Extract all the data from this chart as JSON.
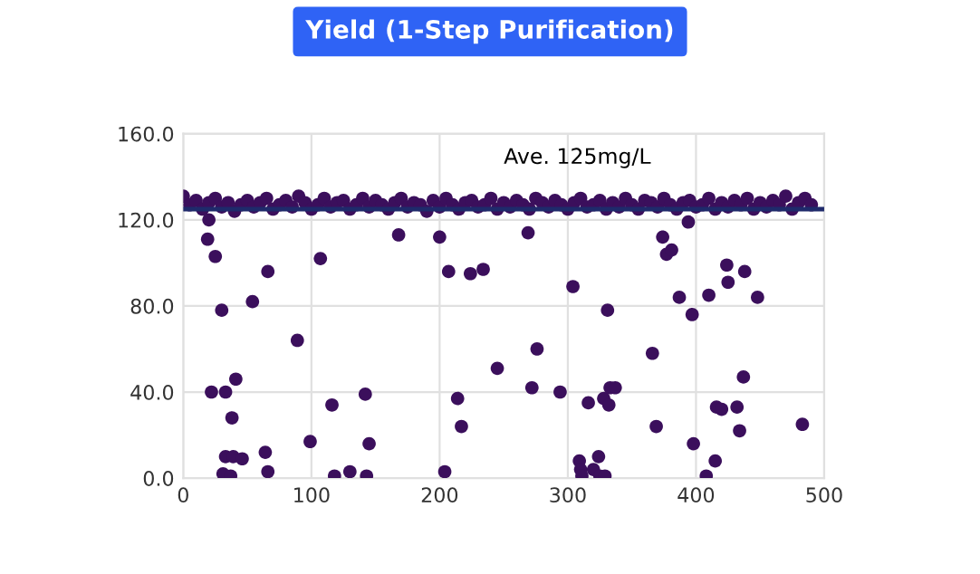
{
  "chart_data": {
    "type": "scatter",
    "title": "Yield (1-Step Purification)",
    "series": [
      {
        "color": "#3b0f5c",
        "x": [
          0,
          5,
          10,
          15,
          20,
          25,
          30,
          35,
          40,
          45,
          50,
          55,
          60,
          65,
          70,
          75,
          80,
          85,
          90,
          95,
          100,
          105,
          110,
          115,
          120,
          125,
          130,
          135,
          140,
          145,
          150,
          155,
          160,
          165,
          170,
          175,
          180,
          185,
          190,
          195,
          200,
          205,
          210,
          215,
          220,
          225,
          230,
          235,
          240,
          245,
          250,
          255,
          260,
          265,
          270,
          275,
          280,
          285,
          290,
          295,
          300,
          305,
          310,
          315,
          320,
          325,
          330,
          335,
          340,
          345,
          350,
          355,
          360,
          365,
          370,
          375,
          380,
          385,
          390,
          395,
          400,
          405,
          410,
          415,
          420,
          425,
          430,
          435,
          440,
          445,
          450,
          455,
          460,
          465,
          470,
          475,
          480,
          485,
          490
        ],
        "values": [
          131,
          127,
          129,
          125,
          128,
          130,
          126,
          128,
          124,
          127,
          129,
          126,
          128,
          130,
          125,
          127,
          129,
          126,
          131,
          128,
          125,
          127,
          130,
          126,
          128,
          129,
          125,
          127,
          130,
          126,
          129,
          127,
          125,
          128,
          130,
          126,
          128,
          127,
          124,
          129,
          126,
          130,
          127,
          125,
          128,
          129,
          126,
          127,
          130,
          125,
          128,
          126,
          129,
          127,
          125,
          130,
          128,
          126,
          129,
          127,
          125,
          128,
          130,
          126,
          127,
          129,
          125,
          128,
          126,
          130,
          127,
          125,
          129,
          128,
          126,
          130,
          127,
          125,
          128,
          129,
          126,
          127,
          130,
          125,
          128,
          126,
          129,
          127,
          130,
          125,
          128,
          126,
          129,
          127,
          131,
          125,
          128,
          130,
          127
        ]
      },
      {
        "color": "#3b0f5c",
        "x": [
          20,
          19,
          25,
          30,
          22,
          33,
          41,
          38,
          33,
          39,
          46,
          31,
          37,
          66,
          54,
          89,
          64,
          66,
          107,
          99,
          116,
          118,
          130,
          142,
          145,
          143,
          168,
          200,
          207,
          224,
          234,
          214,
          217,
          204,
          269,
          304,
          331,
          276,
          245,
          272,
          294,
          316,
          328,
          332,
          333,
          337,
          309,
          310,
          311,
          324,
          320,
          325,
          329,
          374,
          377,
          381,
          394,
          387,
          397,
          410,
          424,
          425,
          438,
          448,
          366,
          437,
          369,
          416,
          420,
          432,
          434,
          398,
          415,
          408,
          483
        ],
        "values": [
          120,
          111,
          103,
          78,
          40,
          40,
          46,
          28,
          10,
          10,
          9,
          2,
          1,
          96,
          82,
          64,
          12,
          3,
          102,
          17,
          34,
          1,
          3,
          39,
          16,
          1,
          113,
          112,
          96,
          95,
          97,
          37,
          24,
          3,
          114,
          89,
          78,
          60,
          51,
          42,
          40,
          35,
          37,
          34,
          42,
          42,
          8,
          4,
          1,
          10,
          4,
          1,
          1,
          112,
          104,
          106,
          119,
          84,
          76,
          85,
          99,
          91,
          96,
          84,
          58,
          47,
          24,
          33,
          32,
          33,
          22,
          16,
          8,
          1,
          25
        ]
      }
    ],
    "xlim": [
      0,
      500
    ],
    "xticks": [
      0,
      100,
      200,
      300,
      400,
      500
    ],
    "ylim": [
      0,
      160
    ],
    "yticks": [
      {
        "value": 0,
        "label": "0.0"
      },
      {
        "value": 40,
        "label": "40.0"
      },
      {
        "value": 80,
        "label": "80.0"
      },
      {
        "value": 120,
        "label": "120.0"
      },
      {
        "value": 160,
        "label": "160.0"
      }
    ],
    "ref_lines": [
      {
        "axis": "y",
        "value": 125,
        "label": "Ave. 125mg/L",
        "color": "#1f2a6b"
      }
    ],
    "grid": true,
    "marker": "circle"
  }
}
